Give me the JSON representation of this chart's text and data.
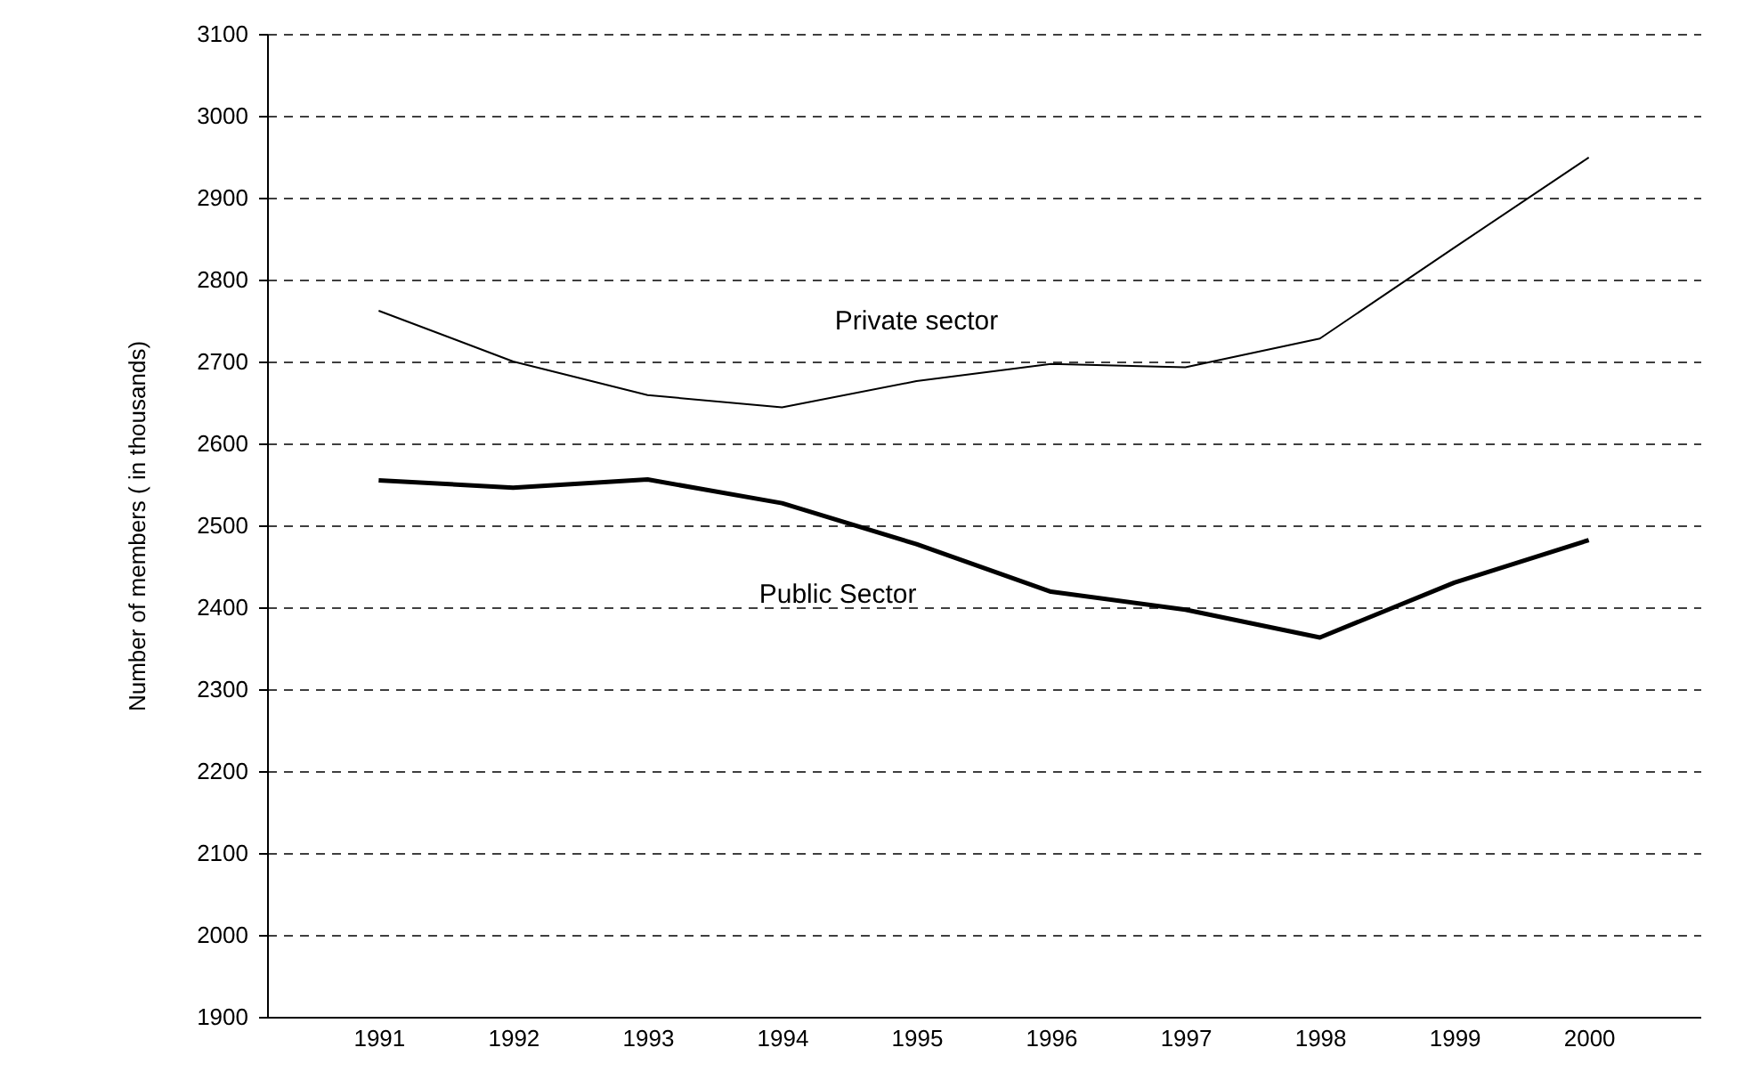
{
  "chart_data": {
    "type": "line",
    "ylabel": "Number of members ( in thousands)",
    "categories": [
      "1991",
      "1992",
      "1993",
      "1994",
      "1995",
      "1996",
      "1997",
      "1998",
      "1999",
      "2000"
    ],
    "series": [
      {
        "name": "Private sector",
        "color": "#000000",
        "values": [
          2762,
          2700,
          2659,
          2644,
          2676,
          2697,
          2693,
          2728,
          2839,
          2949
        ]
      },
      {
        "name": "Public Sector",
        "color": "#000000",
        "values": [
          2555,
          2546,
          2556,
          2527,
          2477,
          2419,
          2397,
          2363,
          2430,
          2482
        ]
      }
    ],
    "ylim": [
      1900,
      3100
    ],
    "yticks": [
      1900,
      2000,
      2100,
      2200,
      2300,
      2400,
      2500,
      2600,
      2700,
      2800,
      2900,
      3000,
      3100
    ],
    "grid": "y",
    "marker": "none",
    "line_style": "solid"
  }
}
